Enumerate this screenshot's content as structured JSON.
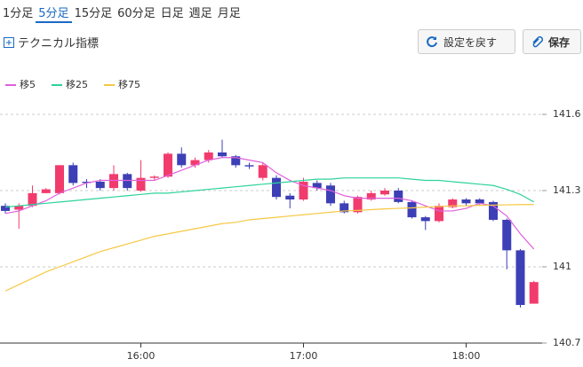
{
  "tabs": [
    "1分足",
    "5分足",
    "15分足",
    "60分足",
    "日足",
    "週足",
    "月足"
  ],
  "selected_tab": 1,
  "toolbar": {
    "indicator": "テクニカル指標",
    "reset": "設定を戻す",
    "save": "保存"
  },
  "chart_data": {
    "type": "candlestick",
    "categories": [
      null,
      null,
      null,
      null,
      null,
      null,
      null,
      null,
      null,
      null,
      "16:00",
      null,
      null,
      null,
      null,
      null,
      null,
      null,
      null,
      null,
      null,
      null,
      "17:00",
      null,
      null,
      null,
      null,
      null,
      null,
      null,
      null,
      null,
      null,
      null,
      "18:00",
      null,
      null,
      null,
      null,
      null
    ],
    "open": [
      141.24,
      141.225,
      141.24,
      141.29,
      141.29,
      141.4,
      141.335,
      141.335,
      141.31,
      141.365,
      141.3,
      141.35,
      141.355,
      141.445,
      141.4,
      141.42,
      141.45,
      141.435,
      141.4,
      141.35,
      141.35,
      141.28,
      141.265,
      141.33,
      141.32,
      141.25,
      141.215,
      141.265,
      141.285,
      141.3,
      141.255,
      141.195,
      141.18,
      141.235,
      141.265,
      141.265,
      141.255,
      141.185,
      141.065,
      140.855
    ],
    "high": [
      141.25,
      141.25,
      141.32,
      141.31,
      141.4,
      141.41,
      141.345,
      141.345,
      141.4,
      141.37,
      141.42,
      141.36,
      141.45,
      141.47,
      141.43,
      141.46,
      141.5,
      141.44,
      141.41,
      141.41,
      141.36,
      141.29,
      141.35,
      141.34,
      141.33,
      141.26,
      141.28,
      141.3,
      141.31,
      141.31,
      141.26,
      141.2,
      141.25,
      141.27,
      141.27,
      141.27,
      141.26,
      141.19,
      141.07,
      140.945
    ],
    "low": [
      141.21,
      141.15,
      141.235,
      141.29,
      141.285,
      141.32,
      141.31,
      141.3,
      141.3,
      141.3,
      141.295,
      141.34,
      141.35,
      141.39,
      141.39,
      141.41,
      141.43,
      141.39,
      141.385,
      141.34,
      141.265,
      141.23,
      141.26,
      141.3,
      141.24,
      141.21,
      141.21,
      141.26,
      141.28,
      141.25,
      141.19,
      141.145,
      141.175,
      141.23,
      141.24,
      141.245,
      141.18,
      140.99,
      140.84,
      140.855
    ],
    "close": [
      141.22,
      141.24,
      141.29,
      141.305,
      141.4,
      141.33,
      141.33,
      141.31,
      141.365,
      141.31,
      141.35,
      141.355,
      141.445,
      141.4,
      141.42,
      141.45,
      141.435,
      141.4,
      141.395,
      141.4,
      141.275,
      141.265,
      141.335,
      141.31,
      141.25,
      141.215,
      141.275,
      141.29,
      141.3,
      141.255,
      141.195,
      141.18,
      141.24,
      141.265,
      141.25,
      141.25,
      141.185,
      141.065,
      140.85,
      140.94
    ],
    "up_color": "#f23b6d",
    "down_color": "#3c3fb5",
    "series": [
      {
        "name": "移5",
        "color": "#e060dc",
        "values": [
          141.21,
          141.22,
          141.24,
          141.26,
          141.29,
          141.31,
          141.33,
          141.34,
          141.34,
          141.34,
          141.34,
          141.34,
          141.36,
          141.38,
          141.4,
          141.42,
          141.43,
          141.43,
          141.42,
          141.41,
          141.37,
          141.34,
          141.32,
          141.31,
          141.3,
          141.28,
          141.27,
          141.27,
          141.27,
          141.27,
          141.26,
          141.24,
          141.22,
          141.22,
          141.23,
          141.25,
          141.24,
          141.2,
          141.13,
          141.07
        ]
      },
      {
        "name": "移25",
        "color": "#2ed39a",
        "values": [
          141.235,
          141.24,
          141.245,
          141.25,
          141.255,
          141.26,
          141.265,
          141.27,
          141.275,
          141.28,
          141.285,
          141.29,
          141.29,
          141.295,
          141.3,
          141.305,
          141.31,
          141.315,
          141.32,
          141.325,
          141.33,
          141.335,
          141.34,
          141.345,
          141.345,
          141.35,
          141.35,
          141.35,
          141.35,
          141.35,
          141.345,
          141.34,
          141.34,
          141.335,
          141.33,
          141.325,
          141.32,
          141.305,
          141.285,
          141.255
        ]
      },
      {
        "name": "移75",
        "color": "#f5c842",
        "values": [
          140.905,
          140.93,
          140.955,
          140.98,
          141.0,
          141.02,
          141.04,
          141.06,
          141.075,
          141.09,
          141.105,
          141.12,
          141.13,
          141.14,
          141.15,
          141.16,
          141.17,
          141.175,
          141.185,
          141.19,
          141.195,
          141.2,
          141.205,
          141.21,
          141.215,
          141.22,
          141.222,
          141.225,
          141.228,
          141.23,
          141.232,
          141.235,
          141.237,
          141.24,
          141.24,
          141.242,
          141.243,
          141.244,
          141.245,
          141.245
        ]
      }
    ],
    "ylim": [
      140.7,
      141.6
    ],
    "yticks": [
      140.7,
      141,
      141.3,
      141.6
    ],
    "grid": true
  }
}
